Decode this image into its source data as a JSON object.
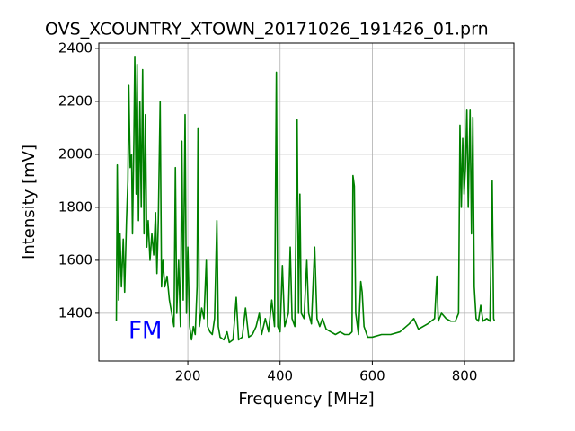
{
  "chart_data": {
    "type": "line",
    "title": "OVS_XCOUNTRY_XTOWN_20171026_191426_01.prn",
    "x_label": "Frequency [MHz]",
    "y_label": "Intensity [mV]",
    "annotation": "FM",
    "annotation_color": "#0000ff",
    "xlim": [
      7,
      907
    ],
    "ylim": [
      1220,
      2420
    ],
    "xticks": [
      200,
      400,
      600,
      800
    ],
    "yticks": [
      1400,
      1600,
      1800,
      2000,
      2200,
      2400
    ],
    "grid": true,
    "x": [
      45,
      47,
      50,
      53,
      56,
      60,
      63,
      67,
      70,
      72,
      75,
      78,
      80,
      83,
      85,
      88,
      90,
      93,
      96,
      99,
      102,
      105,
      108,
      111,
      114,
      118,
      122,
      126,
      130,
      133,
      136,
      140,
      143,
      146,
      150,
      155,
      160,
      165,
      170,
      173,
      176,
      180,
      184,
      187,
      190,
      194,
      197,
      200,
      204,
      208,
      212,
      216,
      220,
      222,
      225,
      230,
      235,
      240,
      243,
      248,
      253,
      258,
      263,
      266,
      270,
      278,
      285,
      290,
      298,
      305,
      310,
      318,
      325,
      332,
      340,
      348,
      355,
      360,
      368,
      375,
      382,
      388,
      392,
      395,
      400,
      405,
      410,
      418,
      422,
      426,
      432,
      437,
      440,
      443,
      446,
      452,
      458,
      462,
      468,
      475,
      480,
      486,
      492,
      500,
      510,
      520,
      530,
      540,
      550,
      556,
      558,
      561,
      564,
      570,
      575,
      578,
      582,
      590,
      600,
      620,
      640,
      660,
      680,
      690,
      700,
      720,
      735,
      740,
      743,
      750,
      760,
      770,
      780,
      787,
      790,
      793,
      796,
      799,
      802,
      805,
      808,
      812,
      815,
      818,
      821,
      825,
      830,
      835,
      840,
      848,
      855,
      860,
      863,
      865
    ],
    "series": [
      {
        "name": "intensity",
        "color": "#008000",
        "values": [
          1370,
          1960,
          1450,
          1700,
          1500,
          1680,
          1480,
          1750,
          1900,
          2260,
          1950,
          2000,
          1700,
          2050,
          2370,
          1850,
          2340,
          1750,
          2200,
          1800,
          2320,
          1700,
          2150,
          1650,
          1750,
          1600,
          1700,
          1620,
          1780,
          1550,
          1750,
          2200,
          1500,
          1600,
          1500,
          1540,
          1450,
          1400,
          1350,
          1950,
          1400,
          1600,
          1350,
          2050,
          1450,
          2150,
          1400,
          1650,
          1350,
          1300,
          1350,
          1320,
          1500,
          2100,
          1350,
          1420,
          1380,
          1600,
          1350,
          1330,
          1320,
          1380,
          1750,
          1350,
          1310,
          1300,
          1330,
          1290,
          1300,
          1460,
          1300,
          1310,
          1420,
          1310,
          1320,
          1350,
          1400,
          1320,
          1380,
          1330,
          1450,
          1350,
          2310,
          1350,
          1330,
          1580,
          1350,
          1400,
          1650,
          1380,
          1350,
          2130,
          1400,
          1850,
          1400,
          1380,
          1600,
          1400,
          1360,
          1650,
          1380,
          1350,
          1380,
          1340,
          1330,
          1320,
          1330,
          1320,
          1320,
          1330,
          1920,
          1880,
          1400,
          1320,
          1520,
          1480,
          1350,
          1310,
          1310,
          1320,
          1320,
          1330,
          1360,
          1380,
          1340,
          1360,
          1380,
          1540,
          1370,
          1400,
          1380,
          1370,
          1370,
          1400,
          2110,
          1800,
          2060,
          1850,
          1950,
          2170,
          1800,
          2170,
          1700,
          2140,
          1500,
          1380,
          1370,
          1430,
          1370,
          1380,
          1370,
          1900,
          1380,
          1370
        ]
      }
    ]
  }
}
